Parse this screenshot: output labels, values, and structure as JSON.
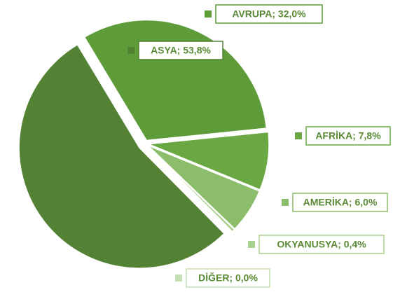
{
  "chart_data": {
    "type": "pie",
    "values": [
      32.0,
      7.8,
      6.0,
      0.4,
      0.0,
      53.8
    ],
    "value_labels": [
      "AVRUPA; 32,0%",
      "AFRİKA; 7,8%",
      "AMERİKA; 6,0%",
      "OKYANUSYA; 0,4%",
      "DİĞER; 0,0%",
      "ASYA; 53,8%"
    ],
    "colors": [
      "#5e9c3a",
      "#6aa843",
      "#8cbd6a",
      "#a9d18e",
      "#c5e0b4",
      "#548235"
    ]
  }
}
